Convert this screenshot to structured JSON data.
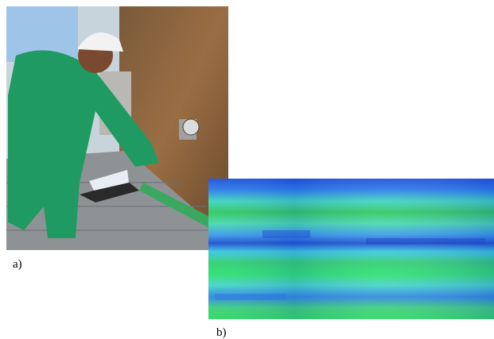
{
  "figure": {
    "panels": [
      {
        "label": "a)"
      },
      {
        "label": "b)"
      }
    ]
  }
}
